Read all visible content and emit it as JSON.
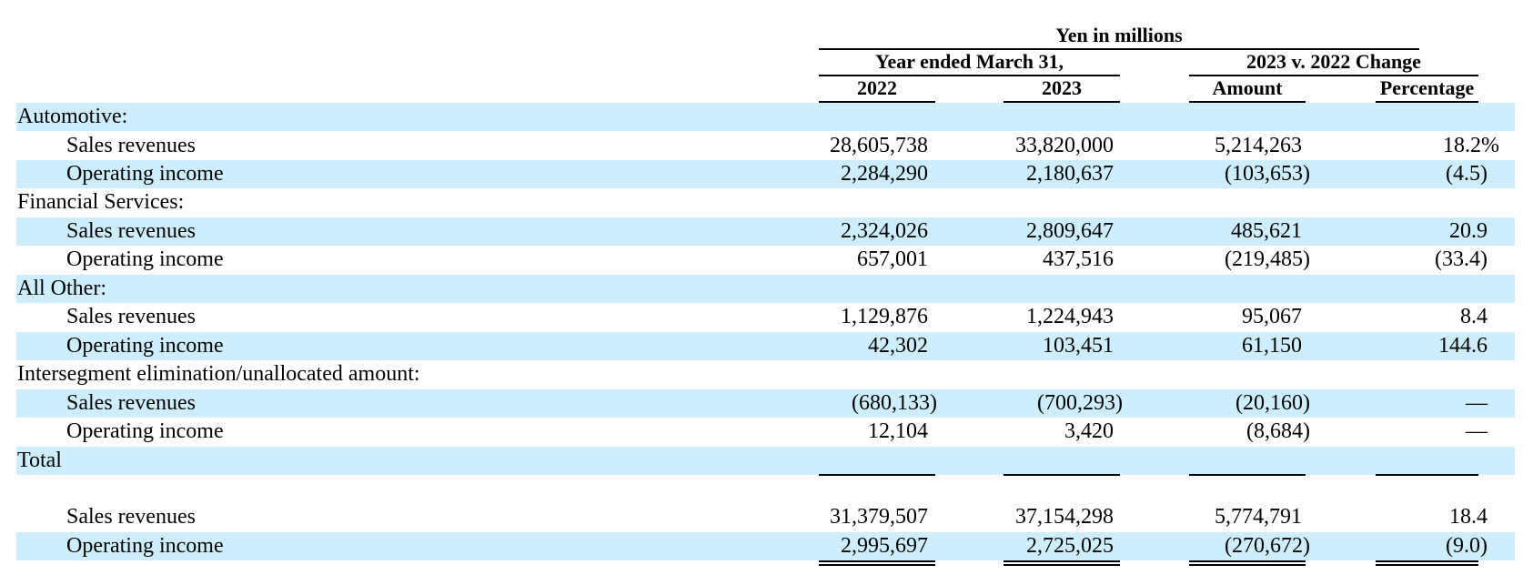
{
  "header": {
    "units": "Yen in millions",
    "group_year": "Year ended March 31,",
    "group_change": "2023 v. 2022 Change",
    "col_2022": "2022",
    "col_2023": "2023",
    "col_amount": "Amount",
    "col_percentage": "Percentage"
  },
  "rows": [
    {
      "label": "Automotive:"
    },
    {
      "label": "Sales revenues",
      "v2022": "28,605,738",
      "v2023": "33,820,000",
      "amount": "5,214,263",
      "pct": "18.2%"
    },
    {
      "label": "Operating income",
      "v2022": "2,284,290",
      "v2023": "2,180,637",
      "amount": "(103,653)",
      "pct": "(4.5)"
    },
    {
      "label": "Financial Services:"
    },
    {
      "label": "Sales revenues",
      "v2022": "2,324,026",
      "v2023": "2,809,647",
      "amount": "485,621",
      "pct": "20.9"
    },
    {
      "label": "Operating income",
      "v2022": "657,001",
      "v2023": "437,516",
      "amount": "(219,485)",
      "pct": "(33.4)"
    },
    {
      "label": "All Other:"
    },
    {
      "label": "Sales revenues",
      "v2022": "1,129,876",
      "v2023": "1,224,943",
      "amount": "95,067",
      "pct": "8.4"
    },
    {
      "label": "Operating income",
      "v2022": "42,302",
      "v2023": "103,451",
      "amount": "61,150",
      "pct": "144.6"
    },
    {
      "label": "Intersegment elimination/unallocated amount:"
    },
    {
      "label": "Sales revenues",
      "v2022": "(680,133)",
      "v2023": "(700,293)",
      "amount": "(20,160)",
      "pct": "—"
    },
    {
      "label": "Operating income",
      "v2022": "12,104",
      "v2023": "3,420",
      "amount": "(8,684)",
      "pct": "—"
    },
    {
      "label": "Total"
    },
    {
      "label": "Sales revenues",
      "v2022": "31,379,507",
      "v2023": "37,154,298",
      "amount": "5,774,791",
      "pct": "18.4"
    },
    {
      "label": "Operating income",
      "v2022": "2,995,697",
      "v2023": "2,725,025",
      "amount": "(270,672)",
      "pct": "(9.0)"
    }
  ]
}
